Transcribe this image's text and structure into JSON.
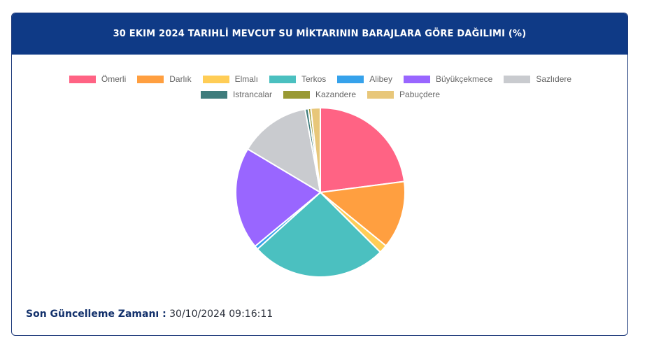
{
  "header": {
    "title": "30 EKIM 2024 TARIHLİ MEVCUT SU MİKTARININ BARAJLARA GÖRE DAĞILIMI (%)"
  },
  "footer": {
    "label": "Son Güncelleme Zamanı :",
    "value": " 30/10/2024 09:16:11"
  },
  "chart_data": {
    "type": "pie",
    "categories": [
      "Ömerli",
      "Darlık",
      "Elmalı",
      "Terkos",
      "Alibey",
      "Büyükçekmece",
      "Sazlıdere",
      "Istrancalar",
      "Kazandere",
      "Pabuçdere"
    ],
    "values": [
      22.9,
      12.9,
      1.6,
      25.8,
      0.7,
      19.5,
      13.5,
      0.6,
      0.5,
      1.8
    ],
    "colors": [
      "#ff6384",
      "#ff9f40",
      "#ffcd56",
      "#4bc0c0",
      "#36a2eb",
      "#9966ff",
      "#c9cbcf",
      "#3e7c7c",
      "#999933",
      "#e8c77a"
    ],
    "legend_position": "top"
  }
}
